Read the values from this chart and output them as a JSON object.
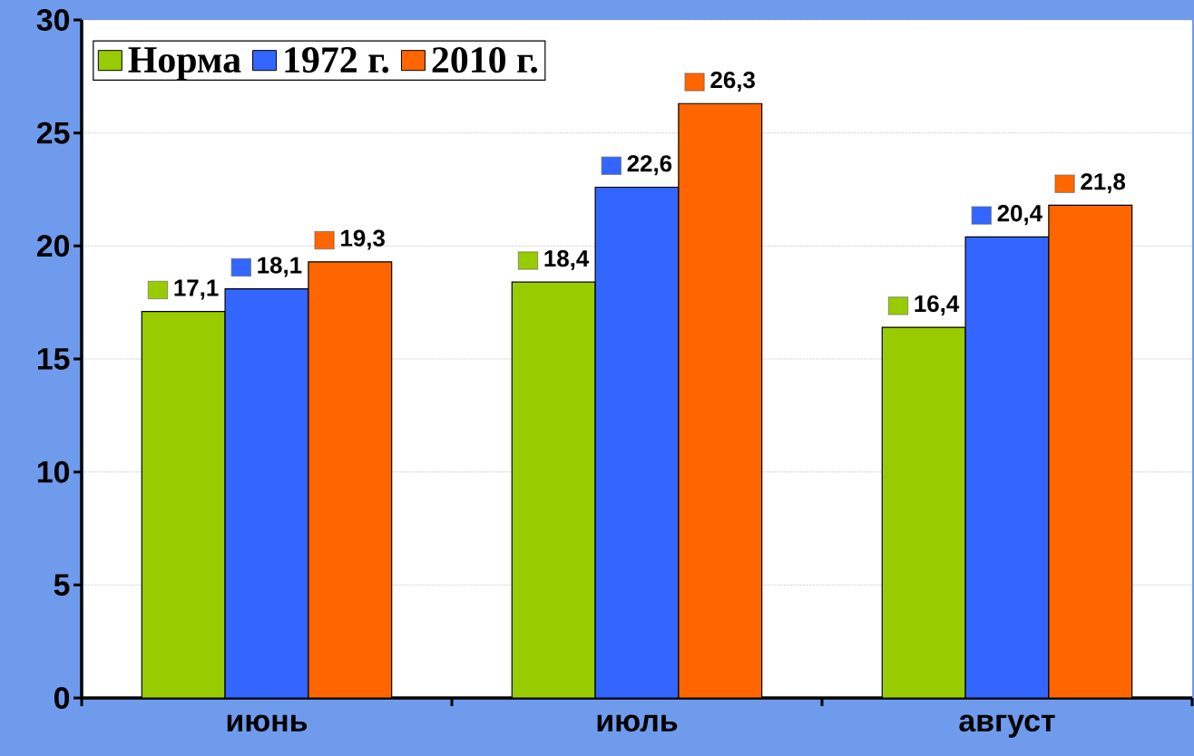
{
  "chart_data": {
    "type": "bar",
    "categories": [
      "июнь",
      "июль",
      "август"
    ],
    "series": [
      {
        "name": "Норма",
        "color": "#99cc00",
        "values": [
          17.1,
          18.4,
          16.4
        ],
        "value_labels": [
          "17,1",
          "18,4",
          "16,4"
        ]
      },
      {
        "name": "1972 г.",
        "color": "#3366ff",
        "values": [
          18.1,
          22.6,
          20.4
        ],
        "value_labels": [
          "18,1",
          "22,6",
          "20,4"
        ]
      },
      {
        "name": "2010 г.",
        "color": "#ff6600",
        "values": [
          19.3,
          26.3,
          21.8
        ],
        "value_labels": [
          "19,3",
          "26,3",
          "21,8"
        ]
      }
    ],
    "ylim": [
      0,
      30
    ],
    "yticks": [
      0,
      5,
      10,
      15,
      20,
      25,
      30
    ],
    "grid": "y",
    "legend": "top left"
  }
}
